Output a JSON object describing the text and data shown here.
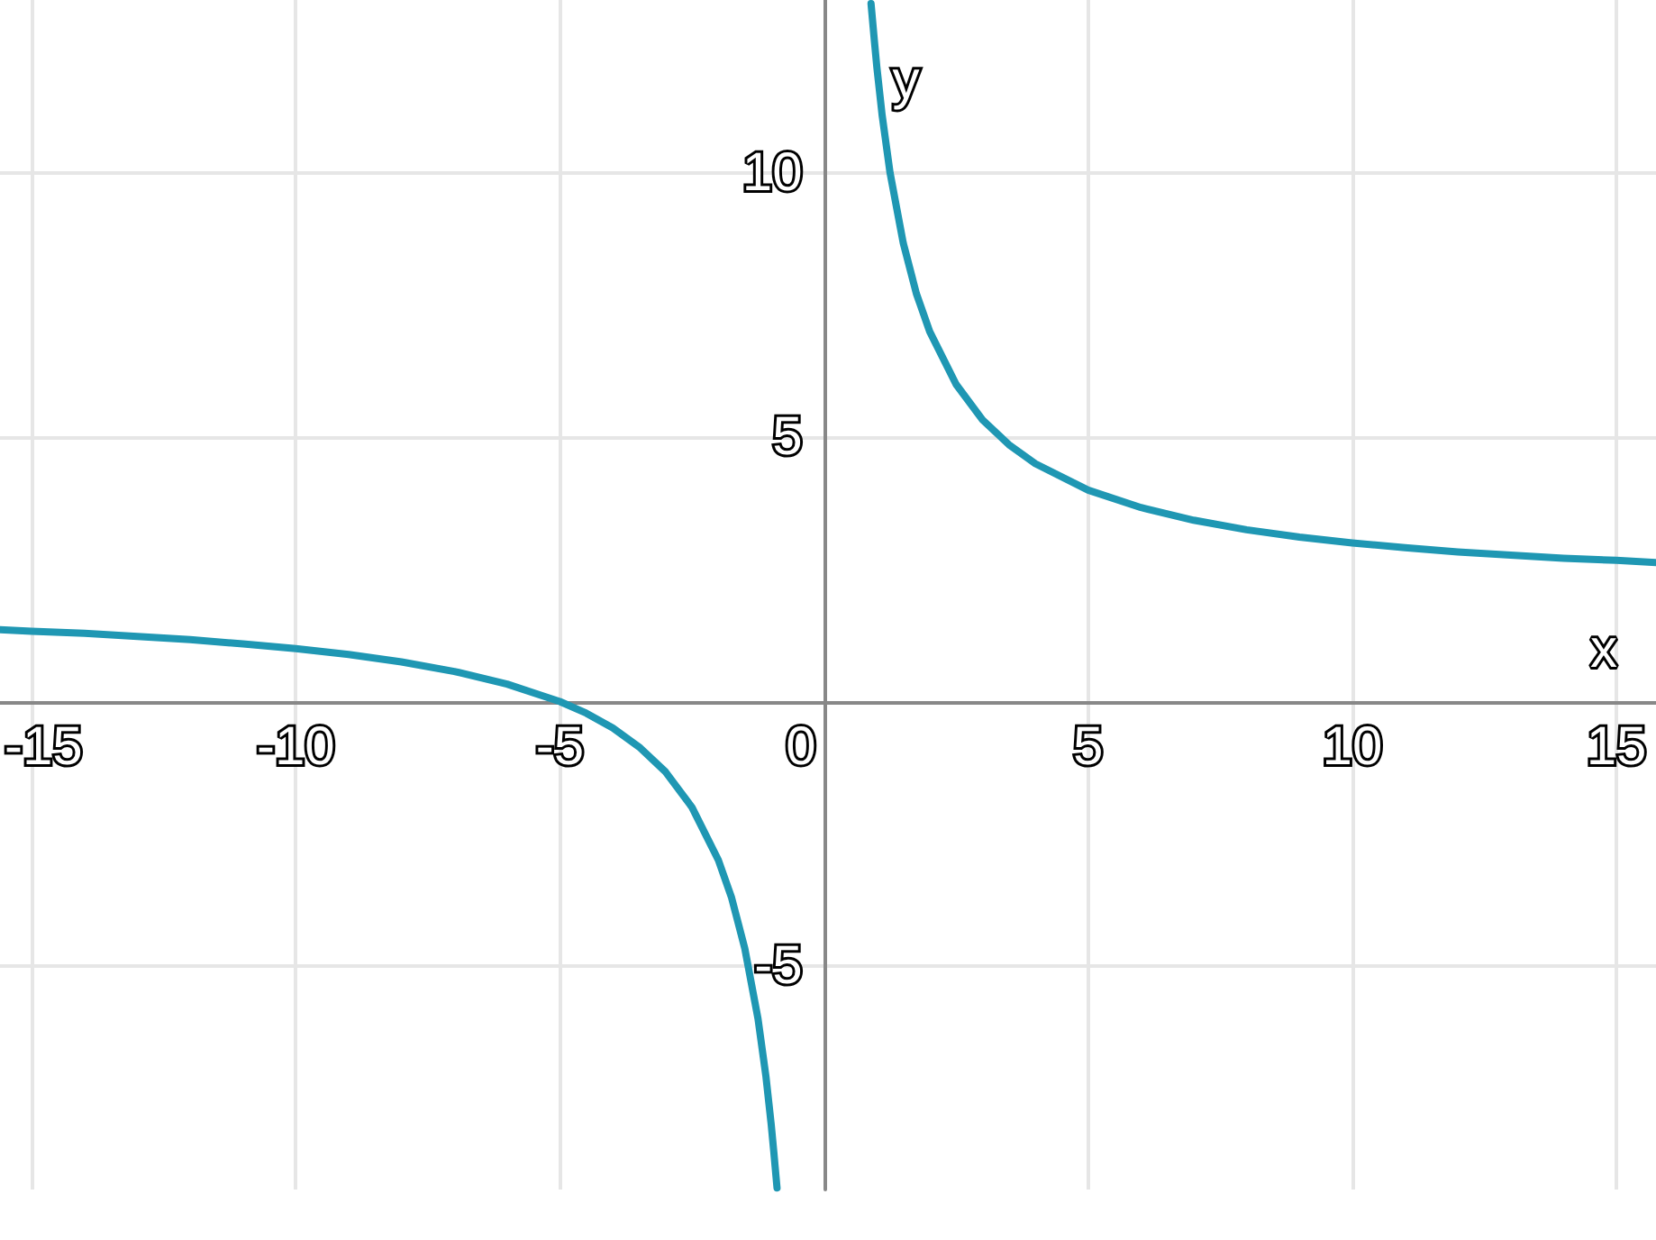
{
  "chart_data": {
    "type": "line",
    "xlabel": "x",
    "ylabel": "y",
    "xlim": [
      -15.6,
      15.75
    ],
    "ylim": [
      -9.23,
      13.27
    ],
    "xticks": [
      -15,
      -10,
      -5,
      0,
      5,
      10,
      15
    ],
    "yticks": [
      -5,
      5,
      10
    ],
    "grid": true,
    "series": [
      {
        "color": "#1f97b3",
        "x": [
          -15.6,
          -15,
          -14,
          -13,
          -12,
          -11,
          -10,
          -9,
          -8,
          -7,
          -6,
          -5,
          -4.5,
          -4,
          -3.5,
          -3,
          -2.5,
          -2,
          -1.75,
          -1.5,
          -1.25,
          -1.1,
          -1,
          -0.95,
          -0.89
        ],
        "values": [
          1.36,
          1.33,
          1.29,
          1.23,
          1.17,
          1.09,
          1,
          0.89,
          0.75,
          0.57,
          0.33,
          0,
          -0.22,
          -0.5,
          -0.86,
          -1.33,
          -2,
          -3,
          -3.71,
          -4.67,
          -6,
          -7.09,
          -8,
          -8.53,
          -9.2
        ]
      },
      {
        "color": "#1f97b3",
        "x": [
          0.89,
          0.95,
          1,
          1.1,
          1.25,
          1.5,
          1.75,
          2,
          2.5,
          3,
          3.5,
          4,
          5,
          6,
          7,
          8,
          9,
          10,
          11,
          12,
          13,
          14,
          15,
          15.75
        ],
        "values": [
          13.2,
          12.53,
          12,
          11.09,
          10,
          8.67,
          7.71,
          7,
          6,
          5.33,
          4.86,
          4.5,
          4,
          3.67,
          3.43,
          3.25,
          3.11,
          3,
          2.91,
          2.83,
          2.77,
          2.71,
          2.67,
          2.63
        ]
      }
    ]
  }
}
